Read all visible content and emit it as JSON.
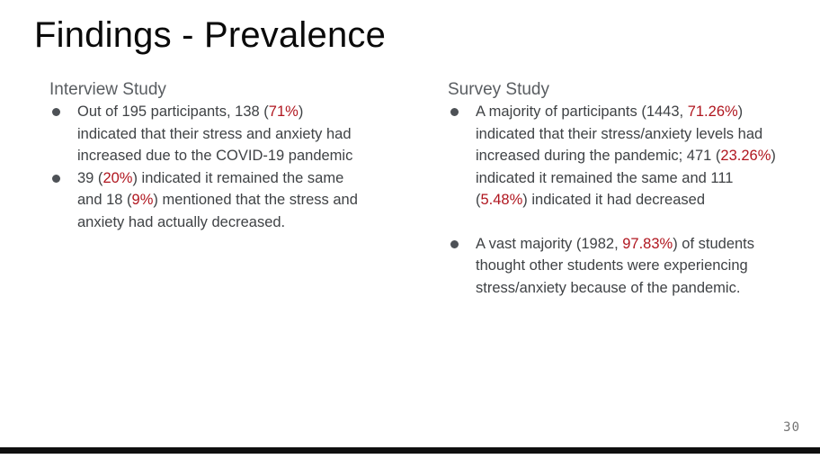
{
  "slide": {
    "title": "Findings - Prevalence",
    "page_number": "30",
    "colors": {
      "accent_red": "#b0161f",
      "body_text": "#3f4245",
      "heading_text": "#595d61",
      "title_text": "#0a0a0a",
      "bullet_dot": "#4d5156",
      "footer_bar": "#0f0f0f",
      "page_number_text": "#737373",
      "background": "#ffffff"
    },
    "columns": [
      {
        "heading": "Interview Study",
        "bullets": [
          {
            "segments": [
              {
                "text": "Out of 195 participants, 138 ("
              },
              {
                "text": "71%",
                "red": true
              },
              {
                "text": ") indicated that their stress and anxiety had increased due to the COVID-19 pandemic"
              }
            ]
          },
          {
            "segments": [
              {
                "text": "39 ("
              },
              {
                "text": "20%",
                "red": true
              },
              {
                "text": ") indicated it remained the same and 18 ("
              },
              {
                "text": "9%",
                "red": true
              },
              {
                "text": ") mentioned that the stress and anxiety had actually decreased."
              }
            ]
          }
        ]
      },
      {
        "heading": "Survey Study",
        "bullets": [
          {
            "segments": [
              {
                "text": "A majority of participants (1443, "
              },
              {
                "text": "71.26%",
                "red": true
              },
              {
                "text": ") indicated that their stress/anxiety levels had increased during the pandemic; 471 ("
              },
              {
                "text": "23.26%",
                "red": true
              },
              {
                "text": ") indicated it remained the same and 111 ("
              },
              {
                "text": "5.48%",
                "red": true
              },
              {
                "text": ") indicated it had decreased"
              }
            ]
          },
          {
            "segments": [
              {
                "text": "A vast majority (1982, "
              },
              {
                "text": "97.83%",
                "red": true
              },
              {
                "text": ") of students thought other students were experiencing stress/anxiety because of the pandemic."
              }
            ]
          }
        ]
      }
    ]
  }
}
